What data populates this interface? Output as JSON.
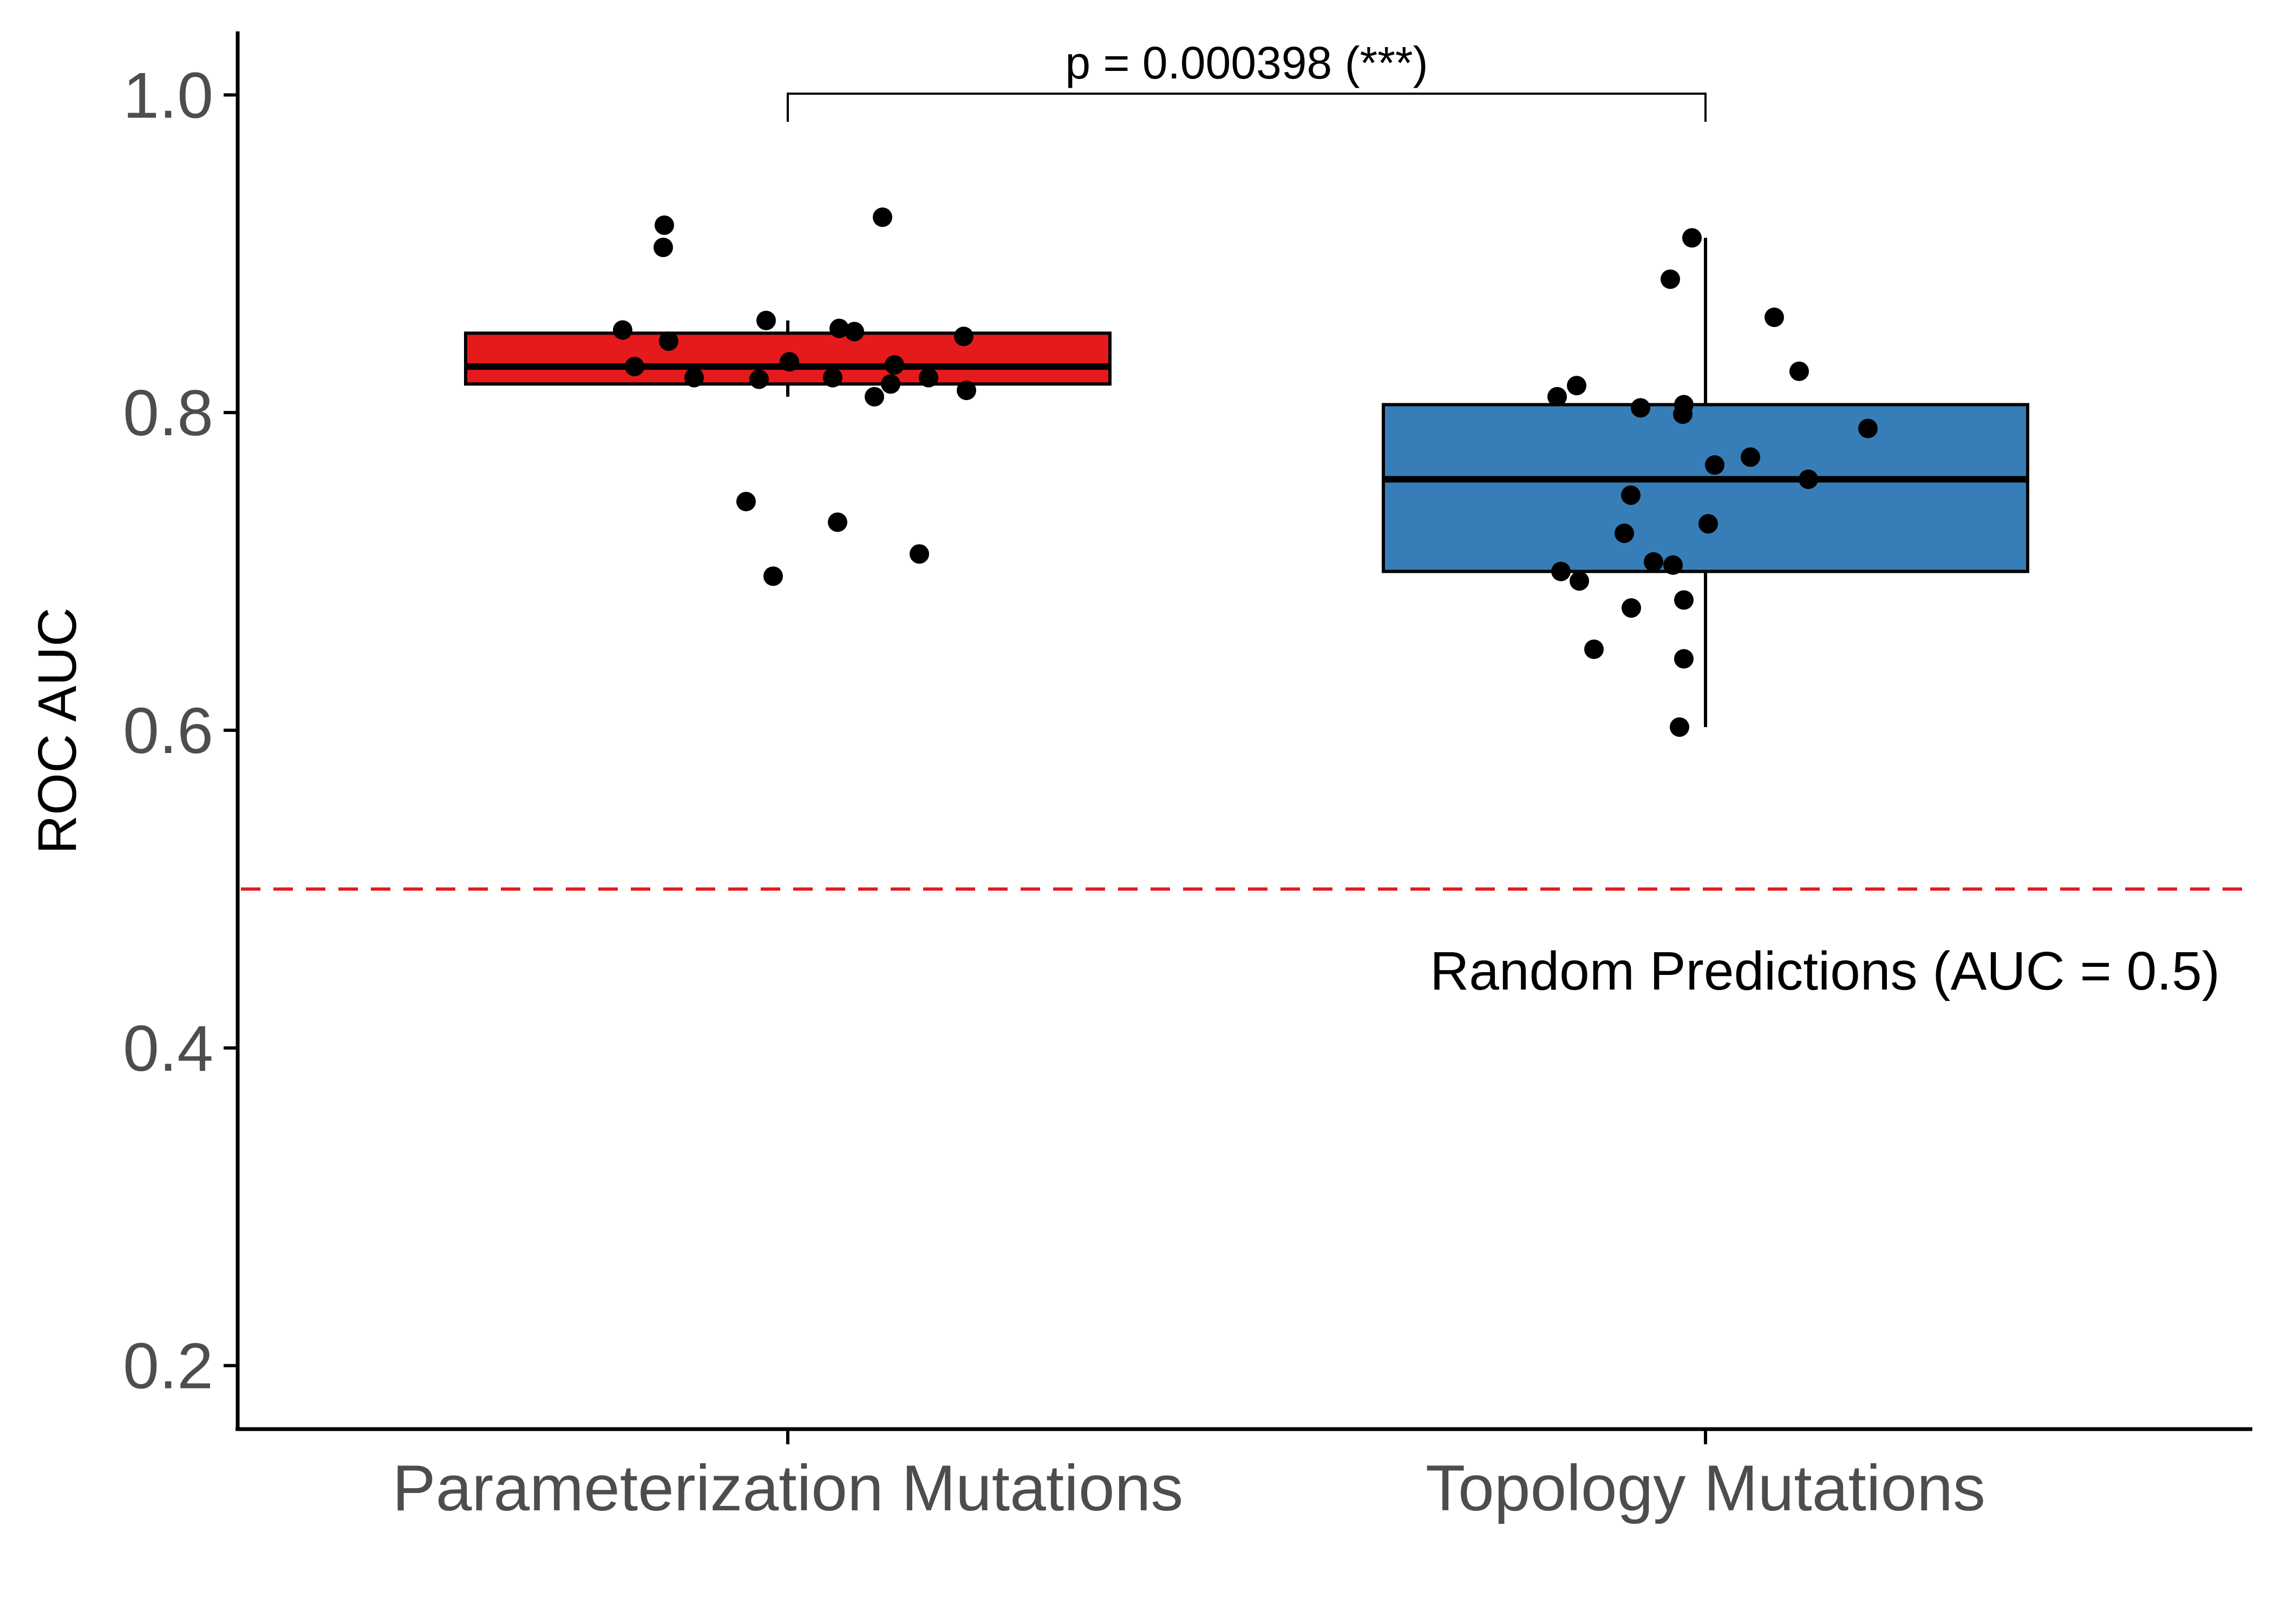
{
  "chart_data": {
    "type": "box",
    "title": "",
    "xlabel": "",
    "ylabel": "ROC AUC",
    "ylim": [
      0.16,
      1.04
    ],
    "y_ticks": [
      "0.2",
      "0.4",
      "0.6",
      "0.8",
      "1.0"
    ],
    "grid": false,
    "legend": "none",
    "categories": [
      "Parameterization Mutations",
      "Topology Mutations"
    ],
    "series": [
      {
        "box": {
          "q1": 0.818,
          "median": 0.829,
          "q3": 0.85,
          "whisker_low": 0.81,
          "whisker_high": 0.858
        },
        "points": [
          0.904,
          0.918,
          0.923,
          0.852,
          0.845,
          0.829,
          0.822,
          0.858,
          0.821,
          0.832,
          0.853,
          0.851,
          0.822,
          0.81,
          0.83,
          0.818,
          0.822,
          0.848,
          0.814,
          0.744,
          0.731,
          0.711,
          0.697
        ]
      },
      {
        "box": {
          "q1": 0.7,
          "median": 0.758,
          "q3": 0.805,
          "whisker_low": 0.602,
          "whisker_high": 0.91
        },
        "points": [
          0.91,
          0.884,
          0.86,
          0.826,
          0.79,
          0.817,
          0.81,
          0.803,
          0.805,
          0.799,
          0.772,
          0.767,
          0.758,
          0.748,
          0.73,
          0.724,
          0.706,
          0.704,
          0.7,
          0.694,
          0.682,
          0.677,
          0.651,
          0.645,
          0.602
        ]
      }
    ],
    "colors": {
      "series": [
        "#e41a1c",
        "#377eb8"
      ],
      "reference_line": "#e41a1c",
      "points": "#000000"
    },
    "reference_line": {
      "y": 0.5,
      "style": "dashed",
      "label": "Random Predictions (AUC = 0.5)"
    },
    "comparison": {
      "between": [
        0,
        1
      ],
      "label": "p = 0.000398 (***)"
    }
  }
}
